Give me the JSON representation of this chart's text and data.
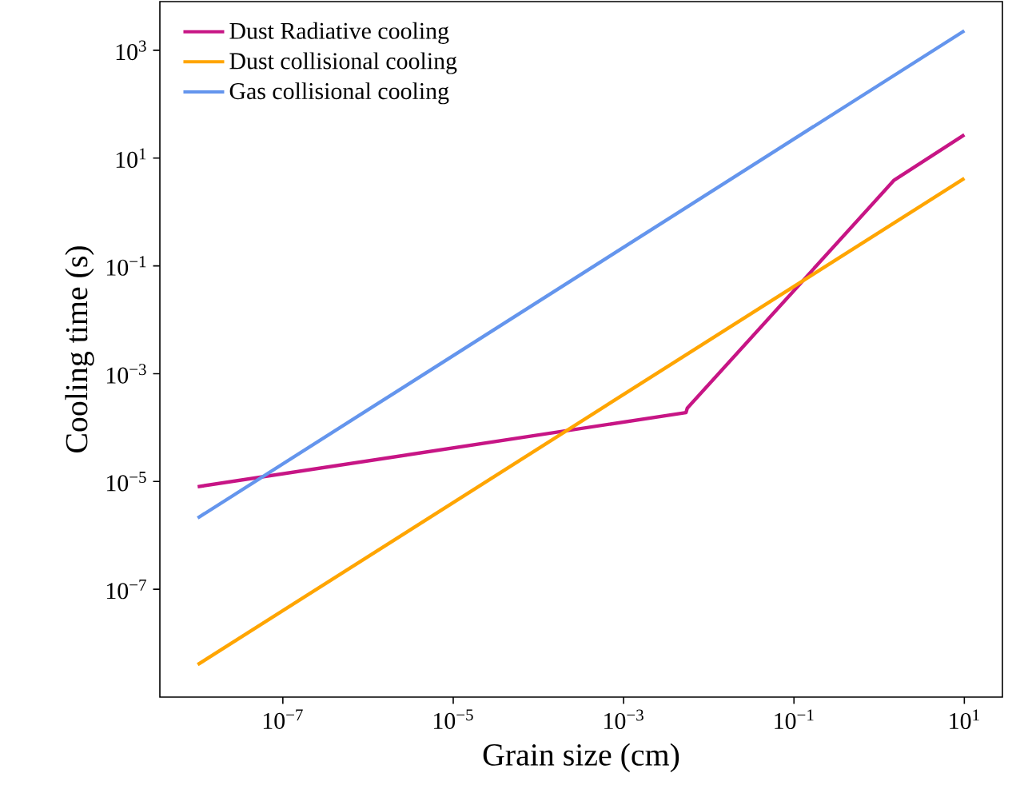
{
  "chart_data": {
    "type": "line",
    "xlabel": "Grain size (cm)",
    "ylabel": "Cooling time (s)",
    "log": "xy",
    "xlim": [
      3.6e-09,
      28
    ],
    "ylim": [
      1e-09,
      8000
    ],
    "xticks": [
      {
        "value": 1e-07,
        "label": "10$^{−7}$"
      },
      {
        "value": 1e-05,
        "label": "10$^{−5}$"
      },
      {
        "value": 0.001,
        "label": "10$^{−3}$"
      },
      {
        "value": 0.1,
        "label": "10$^{−1}$"
      },
      {
        "value": 10,
        "label": "10$^{1}$"
      }
    ],
    "yticks": [
      {
        "value": 1e-07,
        "label": "10$^{−7}$"
      },
      {
        "value": 1e-05,
        "label": "10$^{−5}$"
      },
      {
        "value": 0.001,
        "label": "10$^{−3}$"
      },
      {
        "value": 0.1,
        "label": "10$^{−1}$"
      },
      {
        "value": 10,
        "label": "10$^{1}$"
      },
      {
        "value": 1000,
        "label": "10$^{3}$"
      }
    ],
    "grid": false,
    "legend": "top left",
    "series": [
      {
        "name": "Dust Radiative cooling",
        "color": "#c71585",
        "x": [
          1e-08,
          0.0054,
          0.0056,
          1.5,
          10
        ],
        "values": [
          8e-06,
          0.00019,
          0.00023,
          3.9,
          27
        ]
      },
      {
        "name": "Dust collisional cooling",
        "color": "#ffa500",
        "x": [
          1e-08,
          10
        ],
        "values": [
          4e-09,
          4.2
        ]
      },
      {
        "name": "Gas collisional cooling",
        "color": "#6495ed",
        "x": [
          1e-08,
          10
        ],
        "values": [
          2.1e-06,
          2300
        ]
      }
    ]
  }
}
